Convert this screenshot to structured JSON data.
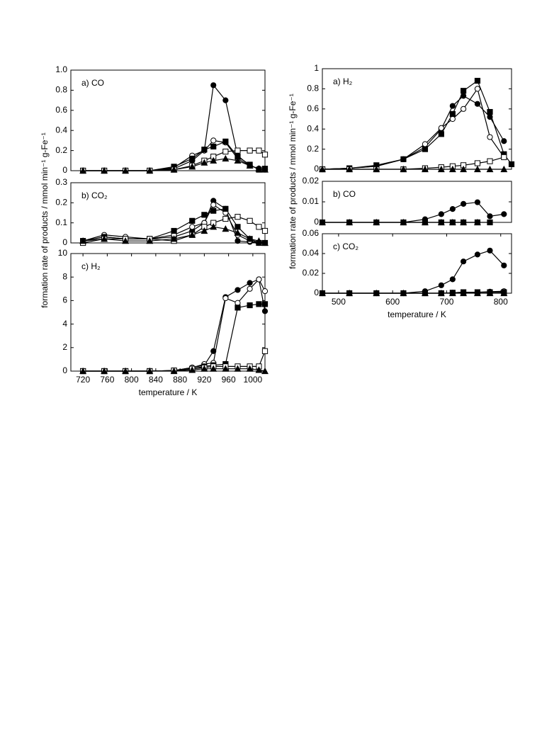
{
  "chart_data": [
    {
      "type": "line",
      "title": "a) CO",
      "x": [
        720,
        755,
        790,
        830,
        870,
        900,
        920,
        935,
        955,
        975,
        995,
        1010,
        1020
      ],
      "xlim": [
        700,
        1020
      ],
      "ylim": [
        0,
        1
      ],
      "yticks": [
        0,
        0.2,
        0.4,
        0.6,
        0.8,
        {
          "value": 1,
          "label": "1.0"
        }
      ],
      "series": [
        {
          "color": "#000000",
          "marker": "circle-filled",
          "values": [
            0,
            0,
            0,
            0,
            0.02,
            0.1,
            0.2,
            0.85,
            0.7,
            0.15,
            0.05,
            0.02,
            0.01
          ]
        },
        {
          "color": "#000000",
          "marker": "circle-open",
          "values": [
            0,
            0,
            0,
            0,
            0.03,
            0.15,
            0.2,
            0.3,
            0.28,
            0.12,
            0.05,
            0.02,
            0.01
          ]
        },
        {
          "color": "#000000",
          "marker": "square-filled",
          "values": [
            0,
            0,
            0,
            0,
            0.04,
            0.12,
            0.21,
            0.24,
            0.29,
            0.14,
            0.06,
            0.01,
            0.02
          ]
        },
        {
          "color": "#000000",
          "marker": "square-open",
          "values": [
            0,
            0,
            0,
            0,
            0.01,
            0.05,
            0.1,
            0.14,
            0.19,
            0.2,
            0.2,
            0.2,
            0.16
          ]
        },
        {
          "color": "#000000",
          "marker": "triangle-filled",
          "values": [
            0,
            0,
            0,
            0,
            0.01,
            0.04,
            0.08,
            0.1,
            0.12,
            0.1,
            0.05,
            0.02,
            0.01
          ]
        }
      ]
    },
    {
      "type": "line",
      "title": "b) CO₂",
      "ylabel": "formation rate of products / mmol min⁻¹ g-Fe⁻¹",
      "x": [
        720,
        755,
        790,
        830,
        870,
        900,
        920,
        935,
        955,
        975,
        995,
        1010,
        1020
      ],
      "xlim": [
        700,
        1020
      ],
      "ylim": [
        0,
        0.3
      ],
      "yticks": [
        0,
        0.1,
        0.2,
        0.3
      ],
      "series": [
        {
          "color": "#000000",
          "marker": "circle-filled",
          "values": [
            0.01,
            0.03,
            0.02,
            0.02,
            0.03,
            0.06,
            0.1,
            0.21,
            0.17,
            0.01,
            0.005,
            0,
            0
          ]
        },
        {
          "color": "#000000",
          "marker": "circle-open",
          "values": [
            0.01,
            0.04,
            0.03,
            0.02,
            0.04,
            0.08,
            0.1,
            0.19,
            0.15,
            0.04,
            0.01,
            0,
            0
          ]
        },
        {
          "color": "#000000",
          "marker": "square-filled",
          "values": [
            0.01,
            0.03,
            0.02,
            0.02,
            0.06,
            0.11,
            0.14,
            0.16,
            0.17,
            0.08,
            0.02,
            0,
            0
          ]
        },
        {
          "color": "#000000",
          "marker": "square-open",
          "values": [
            0,
            0.02,
            0.02,
            0.02,
            0.01,
            0.04,
            0.08,
            0.1,
            0.12,
            0.13,
            0.11,
            0.08,
            0.06
          ]
        },
        {
          "color": "#000000",
          "marker": "triangle-filled",
          "values": [
            0.01,
            0.02,
            0.01,
            0.01,
            0.02,
            0.04,
            0.06,
            0.08,
            0.07,
            0.05,
            0.02,
            0.01,
            0
          ]
        }
      ]
    },
    {
      "type": "line",
      "title": "c) H₂",
      "xlabel": "temperature / K",
      "x": [
        720,
        755,
        790,
        830,
        870,
        900,
        920,
        935,
        955,
        975,
        995,
        1010,
        1020
      ],
      "xlim": [
        700,
        1020
      ],
      "xticks": [
        720,
        760,
        800,
        840,
        880,
        920,
        960,
        1000
      ],
      "ylim": [
        0,
        10
      ],
      "yticks": [
        0,
        2,
        4,
        6,
        8,
        10
      ],
      "series": [
        {
          "color": "#000000",
          "marker": "circle-filled",
          "values": [
            0,
            0,
            0,
            0,
            0.05,
            0.3,
            0.5,
            1.7,
            6.3,
            6.9,
            7.5,
            7.8,
            5.1
          ]
        },
        {
          "color": "#000000",
          "marker": "circle-open",
          "values": [
            0,
            0,
            0,
            0,
            0.05,
            0.3,
            0.6,
            0.7,
            6.2,
            5.8,
            7.0,
            7.8,
            6.8
          ]
        },
        {
          "color": "#000000",
          "marker": "square-filled",
          "values": [
            0,
            0,
            0,
            0,
            0.05,
            0.2,
            0.4,
            0.5,
            0.6,
            5.4,
            5.6,
            5.7,
            5.7
          ]
        },
        {
          "color": "#000000",
          "marker": "square-open",
          "values": [
            0,
            0,
            0,
            0,
            0.05,
            0.2,
            0.3,
            0.4,
            0.4,
            0.4,
            0.4,
            0.4,
            1.7
          ]
        },
        {
          "color": "#000000",
          "marker": "triangle-filled",
          "values": [
            0,
            0,
            0,
            0,
            0,
            0.1,
            0.2,
            0.2,
            0.2,
            0.2,
            0.2,
            0.1,
            0
          ]
        }
      ]
    },
    {
      "type": "line",
      "title": "a) H₂",
      "x": [
        470,
        520,
        570,
        620,
        660,
        690,
        711,
        731,
        757,
        780,
        806,
        820
      ],
      "xlim": [
        470,
        820
      ],
      "ylim": [
        0,
        1
      ],
      "yticks": [
        0,
        0.2,
        0.4,
        0.6,
        0.8,
        1
      ],
      "series": [
        {
          "color": "#000000",
          "marker": "circle-filled",
          "values": [
            0,
            0.01,
            0.03,
            0.1,
            0.22,
            0.4,
            0.63,
            0.73,
            0.65,
            0.52,
            0.28,
            null
          ]
        },
        {
          "color": "#000000",
          "marker": "circle-open",
          "values": [
            0,
            0.01,
            0.03,
            0.1,
            0.25,
            0.41,
            0.5,
            0.6,
            0.8,
            0.32,
            0.12,
            null
          ]
        },
        {
          "color": "#000000",
          "marker": "square-filled",
          "values": [
            0,
            0.01,
            0.04,
            0.1,
            0.2,
            0.35,
            0.55,
            0.78,
            0.88,
            0.57,
            0.15,
            0.05
          ]
        },
        {
          "color": "#000000",
          "marker": "square-open",
          "values": [
            0,
            0,
            0,
            0,
            0.01,
            0.02,
            0.03,
            0.04,
            0.06,
            0.08,
            0.12,
            null
          ]
        },
        {
          "color": "#000000",
          "marker": "triangle-filled",
          "values": [
            0,
            0,
            0,
            0,
            0,
            0,
            0,
            0,
            0,
            0,
            0,
            null
          ]
        }
      ]
    },
    {
      "type": "line",
      "title": "b) CO",
      "ylabel": "formation rate of products / mmol min⁻¹ g-Fe⁻¹",
      "x": [
        470,
        520,
        570,
        620,
        660,
        690,
        711,
        731,
        757,
        780,
        806,
        820
      ],
      "xlim": [
        470,
        820
      ],
      "ylim": [
        0,
        0.02
      ],
      "yticks": [
        0,
        0.01,
        0.02
      ],
      "series": [
        {
          "color": "#000000",
          "marker": "circle-filled",
          "values": [
            0,
            0,
            0,
            0,
            0.0015,
            0.004,
            0.0065,
            0.009,
            0.0098,
            0.003,
            0.004,
            null
          ]
        },
        {
          "color": "#000000",
          "marker": "triangle-filled",
          "values": [
            0,
            0,
            0,
            0,
            0,
            0,
            0,
            0,
            0,
            null,
            null,
            null
          ]
        },
        {
          "color": "#000000",
          "marker": "square-filled",
          "values": [
            0,
            0,
            0,
            0,
            0,
            0,
            0,
            0,
            0,
            0,
            null,
            null
          ]
        }
      ]
    },
    {
      "type": "line",
      "title": "c) CO₂",
      "xlabel": "temperature / K",
      "x": [
        470,
        520,
        570,
        620,
        660,
        690,
        711,
        731,
        757,
        780,
        806,
        820
      ],
      "xlim": [
        470,
        820
      ],
      "xticks": [
        500,
        600,
        700,
        800
      ],
      "ylim": [
        0,
        0.06
      ],
      "yticks": [
        0,
        0.02,
        0.04,
        0.06
      ],
      "series": [
        {
          "color": "#000000",
          "marker": "circle-filled",
          "values": [
            0,
            0,
            0,
            0,
            0.002,
            0.008,
            0.014,
            0.032,
            0.039,
            0.043,
            0.028,
            null
          ]
        },
        {
          "color": "#000000",
          "marker": "circle-open",
          "values": [
            0,
            0,
            0,
            0,
            0,
            0,
            0.0005,
            0.001,
            0.001,
            0.0015,
            0.002,
            null
          ]
        },
        {
          "color": "#000000",
          "marker": "square-filled",
          "values": [
            0,
            0,
            0,
            0,
            0,
            0,
            0.0005,
            0.001,
            0.001,
            0.001,
            0.001,
            null
          ]
        },
        {
          "color": "#000000",
          "marker": "triangle-filled",
          "values": [
            0,
            0,
            0,
            0,
            0,
            0,
            0,
            0,
            0,
            0,
            0,
            null
          ]
        }
      ]
    }
  ]
}
